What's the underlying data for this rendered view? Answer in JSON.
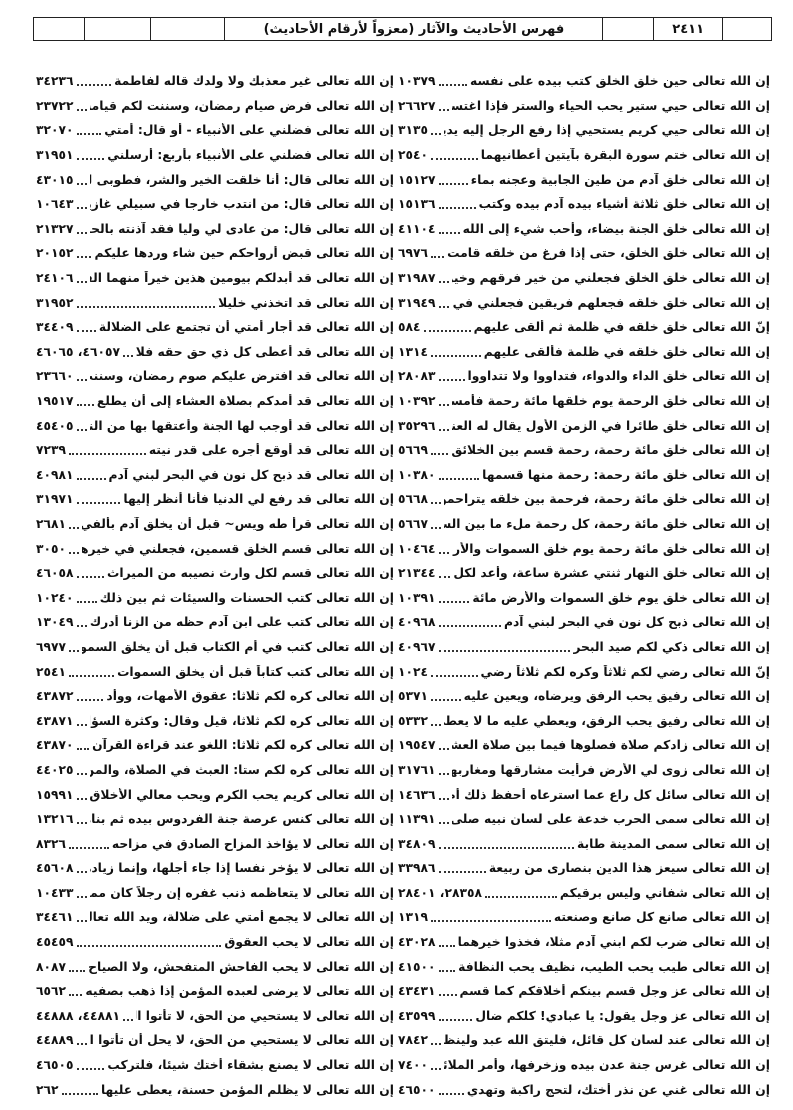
{
  "header": {
    "page_number": "٢٤١١",
    "title": "فهرس الأحاديث والآثار (معزواً لأرقام الأحاديث)"
  },
  "right_column": [
    {
      "text": "إن الله تعالى حين خلق الخلق كتب بيده على نفسه",
      "ref": "١٠٣٧٩"
    },
    {
      "text": "إن الله تعالى حيي ستير يحب الحياء والستر فإذا اغتسل",
      "ref": "٢٦٦٢٧"
    },
    {
      "text": "إن الله تعالى حيي كريم يستحيي إذا رفع الرجل إليه يديه",
      "ref": "٣١٣٥"
    },
    {
      "text": "إن الله تعالى ختم سورة البقرة بآيتين أعطانيهما",
      "ref": "٢٥٤٠"
    },
    {
      "text": "إن الله تعالى خلق آدم من طين الجابية وعجنه بماء",
      "ref": "١٥١٢٧"
    },
    {
      "text": "إن الله تعالى خلق ثلاثة أشياء بيده آدم بيده وكتب",
      "ref": "١٥١٣٦"
    },
    {
      "text": "إن الله تعالى خلق الجنة بيضاء، وأحب شيء إلى الله",
      "ref": "٤١١٠٤"
    },
    {
      "text": "إن الله تعالى خلق الخلق، حتى إذا فرغ من خلقه قامت",
      "ref": "٦٩٧٦"
    },
    {
      "text": "إن الله تعالى خلق الخلق فجعلني من خير فرقهم وخير",
      "ref": "٣١٩٨٧"
    },
    {
      "text": "إن الله تعالى خلق خلقه فجعلهم فريقين فجعلني في خير",
      "ref": "٣١٩٤٩"
    },
    {
      "text": "إنّ الله تعالى خلق خلقه في ظلمة ثم ألقى عليهم",
      "ref": "٥٨٤"
    },
    {
      "text": "إن الله تعالى خلق خلقه في ظلمة فألقى عليهم",
      "ref": "١٣١٤"
    },
    {
      "text": "إن الله تعالى خلق الداء والدواء، فتداووا ولا تتداووا",
      "ref": "٢٨٠٨٣"
    },
    {
      "text": "إن الله تعالى خلق الرحمة يوم خلقها مائة رحمة فأمسك",
      "ref": "١٠٣٩٢"
    },
    {
      "text": "إن الله تعالى خلق طائرا في الزمن الأول يقال له العنقاء",
      "ref": "٣٥٢٩٦"
    },
    {
      "text": "إن الله تعالى خلق مائة رحمة، رحمة قسم بين الخلائق",
      "ref": "٥٦٦٩"
    },
    {
      "text": "إن الله تعالى خلق مائة رحمة: رحمة منها قسمها",
      "ref": "١٠٣٨٠"
    },
    {
      "text": "إن الله تعالى خلق مائة رحمة، فرحمة بين خلقه يتراحمون بها",
      "ref": "٥٦٦٨"
    },
    {
      "text": "إن الله تعالى خلق مائة رحمة، كل رحمة ملء ما بين السماء",
      "ref": "٥٦٦٧"
    },
    {
      "text": "إن الله تعالى خلق مائة رحمة يوم خلق السموات والأرض",
      "ref": "١٠٤٦٤"
    },
    {
      "text": "إن الله تعالى خلق النهار ثنتي عشرة ساعة، وأعد لكل",
      "ref": "٢١٣٤٤"
    },
    {
      "text": "إن الله تعالى خلق يوم خلق السموات والأرض مائة",
      "ref": "١٠٣٩١"
    },
    {
      "text": "إن الله تعالى ذبح كل نون في البحر لبني آدم",
      "ref": "٤٠٩٦٨"
    },
    {
      "text": "إن الله تعالى ذكي لكم صيد البحر",
      "ref": "٤٠٩٦٧"
    },
    {
      "text": "إنّ الله تعالى رضي لكم ثلاثاً وكره لكم ثلاثاً رضي",
      "ref": "١٠٢٤"
    },
    {
      "text": "إن الله تعالى رفيق يحب الرفق ويرضاه، ويعين عليه",
      "ref": "٥٣٧١"
    },
    {
      "text": "إن الله تعالى رفيق يحب الرفق، ويعطي عليه ما لا يعطي",
      "ref": "٥٣٣٢"
    },
    {
      "text": "إن الله تعالى زادكم صلاة فصلوها فيما بين صلاة العشاء",
      "ref": "١٩٥٤٧"
    },
    {
      "text": "إن الله تعالى زوى لي الأرض فرأيت مشارقها ومغاربها",
      "ref": "٣١٧٦١"
    },
    {
      "text": "إن الله تعالى سائل كل راع عما استرعاه أحفظ ذلك أم",
      "ref": "١٤٦٣٦"
    },
    {
      "text": "إن الله تعالى سمى الحرب خدعة على لسان نبيه صلى الله",
      "ref": "١١٣٩١"
    },
    {
      "text": "إن الله تعالى سمى المدينة طابة",
      "ref": "٣٤٨٠٩"
    },
    {
      "text": "إن الله تعالى سيعز هذا الدين بنصارى من ربيعة",
      "ref": "٣٣٩٨٦"
    },
    {
      "text": "إن الله تعالى شفاني وليس برقيكم",
      "ref": "٢٨٣٥٨، ٢٨٤٠١"
    },
    {
      "text": "إن الله تعالى صانع كل صانع وصنعته",
      "ref": "١٣١٩"
    },
    {
      "text": "إن الله تعالى ضرب لكم ابني آدم مثلا، فخذوا خيرهما",
      "ref": "٤٣٠٢٨"
    },
    {
      "text": "إن الله تعالى طيب يحب الطيب، نظيف يحب النظافة",
      "ref": "٤١٥٠٠"
    },
    {
      "text": "إن الله تعالى عز وجل قسم بينكم أخلاقكم كما قسم",
      "ref": "٤٣٤٣١"
    },
    {
      "text": "إن الله تعالى عز وجل يقول: يا عبادي! كلكم ضال",
      "ref": "٤٣٥٩٩"
    },
    {
      "text": "إن الله تعالى عند لسان كل قائل، فليتق الله عبد ولينظر",
      "ref": "٧٨٤٢"
    },
    {
      "text": "إن الله تعالى غرس جنة عدن بيده وزخرفها، وأمر الملائكة",
      "ref": "٧٤٠٠"
    },
    {
      "text": "إن الله تعالى غني عن نذر أختك، لتحج راكبة وتهدي",
      "ref": "٤٦٥٠٠"
    }
  ],
  "left_column": [
    {
      "text": "إن الله تعالى غير معذبك ولا ولدك قاله لفاطمة",
      "ref": "٣٤٢٣٦"
    },
    {
      "text": "إن الله تعالى فرض صيام رمضان، وسننت لكم قيامه",
      "ref": "٢٣٧٢٢"
    },
    {
      "text": "إن الله تعالى فضلني على الأنبياء - أو قال: أمتي",
      "ref": "٣٢٠٧٠"
    },
    {
      "text": "إن الله تعالى فضلني على الأنبياء بأربع: أرسلني",
      "ref": "٣١٩٥١"
    },
    {
      "text": "إن الله تعالى قال: أنا خلقت الخير والشر، فطوبى لمن",
      "ref": "٤٣٠١٥"
    },
    {
      "text": "إن الله تعالى قال: من انتدب خارجا في سبيلي غازيا",
      "ref": "١٠٦٤٣"
    },
    {
      "text": "إن الله تعالى قال: من عادى لي وليا فقد آذنته بالحرب",
      "ref": "٢١٣٢٧"
    },
    {
      "text": "إن الله تعالى قبض أرواحكم حين شاء وردها عليكم",
      "ref": "٢٠١٥٢"
    },
    {
      "text": "إن الله تعالى قد أبدلكم بيومين هذين خيراً منهما الفطر",
      "ref": "٢٤١٠٦"
    },
    {
      "text": "إن الله تعالى قد اتخذني خليلا",
      "ref": "٣١٩٥٢"
    },
    {
      "text": "إن الله تعالى قد أجار أمتي أن تجتمع على الضلالة",
      "ref": "٣٤٤٠٩"
    },
    {
      "text": "إن الله تعالى قد أعطى كل ذي حق حقه فلا وصية",
      "ref": "٤٦٠٥٧، ٤٦٠٦٥"
    },
    {
      "text": "إن الله تعالى قد افترض عليكم صوم رمضان، وسننت",
      "ref": "٢٣٦٦٠"
    },
    {
      "text": "إن الله تعالى قد أمدكم بصلاة العشاء إلى أن يطلع",
      "ref": "١٩٥١٧"
    },
    {
      "text": "إن الله تعالى قد أوجب لها الجنة وأعتقها بها من النار",
      "ref": "٤٥٤٠٥"
    },
    {
      "text": "إن الله تعالى قد أوقع أجره على قدر نيته",
      "ref": "٧٢٣٩"
    },
    {
      "text": "إن الله تعالى قد ذبح كل نون في البحر لبني آدم",
      "ref": "٤٠٩٨١"
    },
    {
      "text": "إن الله تعالى قد رفع لي الدنيا فأنا أنظر إليها",
      "ref": "٣١٩٧١"
    },
    {
      "text": "إن الله تعالى قرأ طه ويس~ قبل أن يخلق آدم بألفي",
      "ref": "٢٦٨١"
    },
    {
      "text": "إن الله تعالى قسم الخلق قسمين، فجعلني في خيرها قسما",
      "ref": "٣٠٥٠"
    },
    {
      "text": "إن الله تعالى قسم لكل وارث نصيبه من الميراث",
      "ref": "٤٦٠٥٨"
    },
    {
      "text": "إن الله تعالى كتب الحسنات والسيئات ثم بين ذلك",
      "ref": "١٠٢٤٠"
    },
    {
      "text": "إن الله تعالى كتب على ابن آدم حظه من الزنا أدرك ذلك",
      "ref": "١٣٠٤٩"
    },
    {
      "text": "إن الله تعالى كتب في أم الكتاب قبل أن يخلق السموات",
      "ref": "٦٩٧٧"
    },
    {
      "text": "إن الله تعالى كتب كتاباً قبل أن يخلق السموات",
      "ref": "٢٥٤١"
    },
    {
      "text": "إن الله تعالى كره لكم ثلاثا: عقوق الأمهات، ووأد",
      "ref": "٤٣٨٧٢"
    },
    {
      "text": "إن الله تعالى كره لكم ثلاثا، قيل وقال: وكثرة السؤال",
      "ref": "٤٣٨٧١"
    },
    {
      "text": "إن الله تعالى كره لكم ثلاثا: اللغو عند قراءة القرآن",
      "ref": "٤٣٨٧٠"
    },
    {
      "text": "إن الله تعالى كره لكم ستا: العبث في الصلاة، والمن",
      "ref": "٤٤٠٢٥"
    },
    {
      "text": "إن الله تعالى كريم يحب الكرم ويحب معالي الأخلاق",
      "ref": "١٥٩٩١"
    },
    {
      "text": "إن الله تعالى كنس عرصة جنة الفردوس بيده ثم بناها",
      "ref": "١٣٢١٦"
    },
    {
      "text": "إن الله تعالى لا يؤاخذ المزاح الصادق في مزاحه",
      "ref": "٨٣٢٦"
    },
    {
      "text": "إن الله تعالى لا يؤخر نفسا إذا جاء أجلها، وإنما زيادة ذرية",
      "ref": "٤٥٦٠٨"
    },
    {
      "text": "إن الله تعالى لا يتعاظمه ذنب غفره إن رجلاً كان ممن",
      "ref": "١٠٤٣٣"
    },
    {
      "text": "إن الله تعالى لا يجمع أمتي على ضلالة، ويد الله تعالى",
      "ref": "٣٤٤٦١"
    },
    {
      "text": "إن الله تعالى لا يحب العقوق",
      "ref": "٤٥٤٥٩"
    },
    {
      "text": "إن الله تعالى لا يحب الفاحش المتفحش، ولا الصياح",
      "ref": "٨٠٨٧"
    },
    {
      "text": "إن الله تعالى لا يرضى لعبده المؤمن إذا ذهب بصفيه",
      "ref": "٦٥٦٢"
    },
    {
      "text": "إن الله تعالى لا يستحيي من الحق، لا تأتوا النساء",
      "ref": "٤٤٨٨١، ٤٤٨٨٨"
    },
    {
      "text": "إن الله تعالى لا يستحيي من الحق، لا يحل أن تأتوا النساء",
      "ref": "٤٤٨٨٩"
    },
    {
      "text": "إن الله تعالى لا يصنع بشقاء أختك شيئا، فلتركب",
      "ref": "٤٦٥٠٥"
    },
    {
      "text": "إن الله تعالى لا يظلم المؤمن حسنة، يعطى عليها",
      "ref": "٢٦٢"
    }
  ]
}
